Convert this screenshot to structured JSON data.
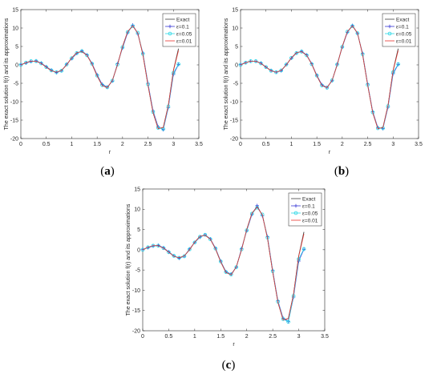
{
  "figure": {
    "panels": [
      {
        "caption_open": "(",
        "caption_letter": "a",
        "caption_close": ")"
      },
      {
        "caption_open": "(",
        "caption_letter": "b",
        "caption_close": ")"
      },
      {
        "caption_open": "(",
        "caption_letter": "c",
        "caption_close": ")"
      }
    ]
  },
  "chart_data": [
    {
      "type": "line",
      "title": "",
      "xlabel": "r",
      "ylabel": "The exact solution f(r) and its approximations",
      "xlim": [
        0,
        3.5
      ],
      "ylim": [
        -20,
        15
      ],
      "x_ticks": [
        "0",
        "0.5",
        "1",
        "1.5",
        "2",
        "2.5",
        "3",
        "3.5"
      ],
      "y_ticks": [
        "-20",
        "-15",
        "-10",
        "-5",
        "0",
        "5",
        "10",
        "15"
      ],
      "grid": false,
      "legend_position": "top-right",
      "x": [
        0,
        0.1,
        0.2,
        0.3,
        0.4,
        0.5,
        0.6,
        0.7,
        0.8,
        0.9,
        1.0,
        1.1,
        1.2,
        1.3,
        1.4,
        1.5,
        1.6,
        1.7,
        1.8,
        1.9,
        2.0,
        2.1,
        2.2,
        2.3,
        2.4,
        2.5,
        2.6,
        2.7,
        2.8,
        2.9,
        3.0,
        3.1
      ],
      "series": [
        {
          "name": "Exact",
          "color": "#404040",
          "marker": "none",
          "values": [
            0,
            0.6,
            1.0,
            1.0,
            0.4,
            -0.6,
            -1.6,
            -2.0,
            -1.5,
            0.0,
            1.9,
            3.3,
            3.6,
            2.6,
            0.2,
            -3.0,
            -5.6,
            -6.2,
            -4.2,
            0.0,
            5.0,
            9.0,
            10.6,
            8.6,
            2.8,
            -5.5,
            -13.0,
            -17.3,
            -17.0,
            -11.0,
            -1.5,
            4.4
          ]
        },
        {
          "name": "ε=0.1",
          "color": "#3b3bd6",
          "marker": "plus",
          "values": [
            0.1,
            0.5,
            0.9,
            1.1,
            0.5,
            -0.5,
            -1.4,
            -2.1,
            -1.6,
            0.2,
            1.7,
            3.1,
            3.8,
            2.7,
            0.4,
            -2.7,
            -5.3,
            -6.0,
            -4.4,
            0.3,
            4.6,
            8.7,
            10.8,
            8.4,
            3.2,
            -5.0,
            -12.5,
            -16.8,
            -17.6,
            -11.6,
            -2.6,
            0.1
          ]
        },
        {
          "name": "ε=0.05",
          "color": "#28d8e6",
          "marker": "circle",
          "values": [
            0,
            0.6,
            1.0,
            1.0,
            0.4,
            -0.6,
            -1.5,
            -2.0,
            -1.6,
            0.1,
            1.8,
            3.2,
            3.7,
            2.6,
            0.3,
            -2.9,
            -5.5,
            -6.1,
            -4.3,
            0.1,
            4.8,
            8.9,
            10.5,
            8.7,
            3.0,
            -5.3,
            -12.8,
            -17.1,
            -17.4,
            -11.3,
            -2.2,
            0.2
          ]
        },
        {
          "name": "ε=0.01",
          "color": "#e8332e",
          "marker": "none",
          "values": [
            0,
            0.6,
            1.0,
            1.0,
            0.4,
            -0.6,
            -1.6,
            -2.0,
            -1.5,
            0.0,
            1.9,
            3.3,
            3.6,
            2.6,
            0.2,
            -3.0,
            -5.6,
            -6.2,
            -4.2,
            0.0,
            5.0,
            9.0,
            10.6,
            8.6,
            2.8,
            -5.5,
            -13.0,
            -17.3,
            -17.0,
            -11.0,
            -1.6,
            3.9
          ]
        }
      ]
    },
    {
      "type": "line",
      "title": "",
      "xlabel": "r",
      "ylabel": "The exact solution f(r) and its approximations",
      "xlim": [
        0,
        3.5
      ],
      "ylim": [
        -20,
        15
      ],
      "x_ticks": [
        "0",
        "0.5",
        "1",
        "1.5",
        "2",
        "2.5",
        "3",
        "3.5"
      ],
      "y_ticks": [
        "-20",
        "-15",
        "-10",
        "-5",
        "0",
        "5",
        "10",
        "15"
      ],
      "grid": false,
      "legend_position": "top-right",
      "x": [
        0,
        0.1,
        0.2,
        0.3,
        0.4,
        0.5,
        0.6,
        0.7,
        0.8,
        0.9,
        1.0,
        1.1,
        1.2,
        1.3,
        1.4,
        1.5,
        1.6,
        1.7,
        1.8,
        1.9,
        2.0,
        2.1,
        2.2,
        2.3,
        2.4,
        2.5,
        2.6,
        2.7,
        2.8,
        2.9,
        3.0,
        3.1
      ],
      "series": [
        {
          "name": "Exact",
          "color": "#404040",
          "marker": "none",
          "values": [
            0,
            0.6,
            1.0,
            1.0,
            0.4,
            -0.6,
            -1.6,
            -2.0,
            -1.5,
            0.0,
            1.9,
            3.3,
            3.6,
            2.6,
            0.2,
            -3.0,
            -5.6,
            -6.2,
            -4.2,
            0.0,
            5.0,
            9.0,
            10.6,
            8.6,
            2.8,
            -5.5,
            -13.0,
            -17.3,
            -17.0,
            -11.0,
            -1.5,
            4.4
          ]
        },
        {
          "name": "ε=0.1",
          "color": "#3b3bd6",
          "marker": "plus",
          "values": [
            0.1,
            0.6,
            1.0,
            1.0,
            0.5,
            -0.6,
            -1.5,
            -2.0,
            -1.6,
            0.1,
            1.8,
            3.2,
            3.7,
            2.7,
            0.3,
            -2.8,
            -5.4,
            -6.1,
            -4.3,
            0.2,
            4.8,
            8.8,
            10.7,
            8.5,
            3.1,
            -5.2,
            -12.7,
            -17.0,
            -17.3,
            -11.5,
            -2.4,
            0.1
          ]
        },
        {
          "name": "ε=0.05",
          "color": "#28d8e6",
          "marker": "circle",
          "values": [
            0,
            0.6,
            1.0,
            1.0,
            0.4,
            -0.6,
            -1.6,
            -2.0,
            -1.5,
            0.1,
            1.9,
            3.2,
            3.6,
            2.6,
            0.2,
            -2.9,
            -5.6,
            -6.2,
            -4.2,
            0.1,
            4.9,
            9.0,
            10.5,
            8.6,
            2.9,
            -5.4,
            -12.9,
            -17.2,
            -17.2,
            -11.2,
            -2.0,
            0.2
          ]
        },
        {
          "name": "ε=0.01",
          "color": "#e8332e",
          "marker": "none",
          "values": [
            0,
            0.6,
            1.0,
            1.0,
            0.4,
            -0.6,
            -1.6,
            -2.0,
            -1.5,
            0.0,
            1.9,
            3.3,
            3.6,
            2.6,
            0.2,
            -3.0,
            -5.6,
            -6.2,
            -4.2,
            0.0,
            5.0,
            9.0,
            10.6,
            8.6,
            2.8,
            -5.5,
            -13.0,
            -17.3,
            -17.0,
            -11.0,
            -1.6,
            3.9
          ]
        }
      ]
    },
    {
      "type": "line",
      "title": "",
      "xlabel": "r",
      "ylabel": "The exact solution f(r) and its approximations",
      "xlim": [
        0,
        3.5
      ],
      "ylim": [
        -20,
        15
      ],
      "x_ticks": [
        "0",
        "0.5",
        "1",
        "1.5",
        "2",
        "2.5",
        "3",
        "3.5"
      ],
      "y_ticks": [
        "-20",
        "-15",
        "-10",
        "-5",
        "0",
        "5",
        "10",
        "15"
      ],
      "grid": false,
      "legend_position": "top-right",
      "x": [
        0,
        0.1,
        0.2,
        0.3,
        0.4,
        0.5,
        0.6,
        0.7,
        0.8,
        0.9,
        1.0,
        1.1,
        1.2,
        1.3,
        1.4,
        1.5,
        1.6,
        1.7,
        1.8,
        1.9,
        2.0,
        2.1,
        2.2,
        2.3,
        2.4,
        2.5,
        2.6,
        2.7,
        2.8,
        2.9,
        3.0,
        3.1
      ],
      "series": [
        {
          "name": "Exact",
          "color": "#404040",
          "marker": "none",
          "values": [
            0,
            0.6,
            1.0,
            1.0,
            0.4,
            -0.6,
            -1.6,
            -2.0,
            -1.5,
            0.0,
            1.9,
            3.3,
            3.6,
            2.6,
            0.2,
            -3.0,
            -5.6,
            -6.2,
            -4.2,
            0.0,
            5.0,
            9.0,
            10.6,
            8.6,
            2.8,
            -5.5,
            -13.0,
            -17.3,
            -17.0,
            -11.0,
            -1.5,
            4.4
          ]
        },
        {
          "name": "ε=0.1",
          "color": "#3b3bd6",
          "marker": "plus",
          "values": [
            0.1,
            0.5,
            0.9,
            1.1,
            0.5,
            -0.5,
            -1.5,
            -2.1,
            -1.6,
            0.2,
            1.8,
            3.1,
            3.7,
            2.7,
            0.4,
            -2.8,
            -5.4,
            -6.0,
            -4.3,
            0.3,
            4.7,
            8.7,
            10.9,
            8.4,
            3.2,
            -5.1,
            -12.6,
            -16.9,
            -17.7,
            -11.7,
            -2.8,
            0.1
          ]
        },
        {
          "name": "ε=0.05",
          "color": "#28d8e6",
          "marker": "circle",
          "values": [
            0,
            0.6,
            1.0,
            1.0,
            0.4,
            -0.6,
            -1.5,
            -2.0,
            -1.6,
            0.1,
            1.8,
            3.2,
            3.7,
            2.6,
            0.3,
            -2.9,
            -5.5,
            -6.1,
            -4.3,
            0.1,
            4.8,
            8.9,
            10.4,
            8.7,
            3.0,
            -5.3,
            -12.8,
            -17.1,
            -17.8,
            -11.4,
            -2.3,
            0.2
          ]
        },
        {
          "name": "ε=0.01",
          "color": "#e8332e",
          "marker": "none",
          "values": [
            0,
            0.6,
            1.0,
            1.0,
            0.4,
            -0.6,
            -1.6,
            -2.0,
            -1.5,
            0.0,
            1.9,
            3.3,
            3.6,
            2.6,
            0.2,
            -3.0,
            -5.6,
            -6.2,
            -4.2,
            0.0,
            5.0,
            9.0,
            10.6,
            8.6,
            2.8,
            -5.5,
            -13.0,
            -17.3,
            -17.0,
            -11.0,
            -1.6,
            3.9
          ]
        }
      ]
    }
  ]
}
